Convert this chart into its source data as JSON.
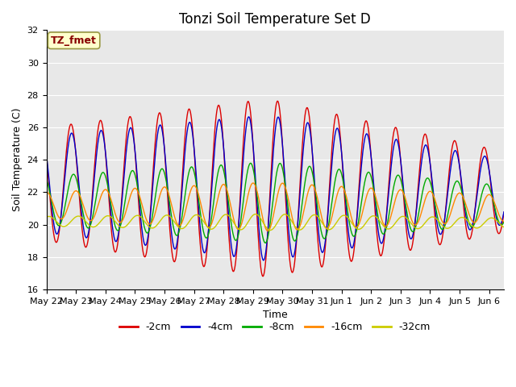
{
  "title": "Tonzi Soil Temperature Set D",
  "xlabel": "Time",
  "ylabel": "Soil Temperature (C)",
  "ylim": [
    16,
    32
  ],
  "yticks": [
    16,
    18,
    20,
    22,
    24,
    26,
    28,
    30,
    32
  ],
  "num_days": 15.5,
  "x_tick_labels": [
    "May 22",
    "May 23",
    "May 24",
    "May 25",
    "May 26",
    "May 27",
    "May 28",
    "May 29",
    "May 30",
    "May 31",
    "Jun 1",
    "Jun 2",
    "Jun 3",
    "Jun 4",
    "Jun 5",
    "Jun 6"
  ],
  "line_colors": [
    "#dd0000",
    "#0000cc",
    "#00aa00",
    "#ff8800",
    "#cccc00"
  ],
  "line_labels": [
    "-2cm",
    "-4cm",
    "-8cm",
    "-16cm",
    "-32cm"
  ],
  "annotation_text": "TZ_fmet",
  "annotation_color": "#880000",
  "annotation_bg": "#ffffcc",
  "annotation_edge": "#999944",
  "bg_color": "#e8e8e8",
  "title_fontsize": 12,
  "axis_fontsize": 9,
  "tick_fontsize": 8
}
